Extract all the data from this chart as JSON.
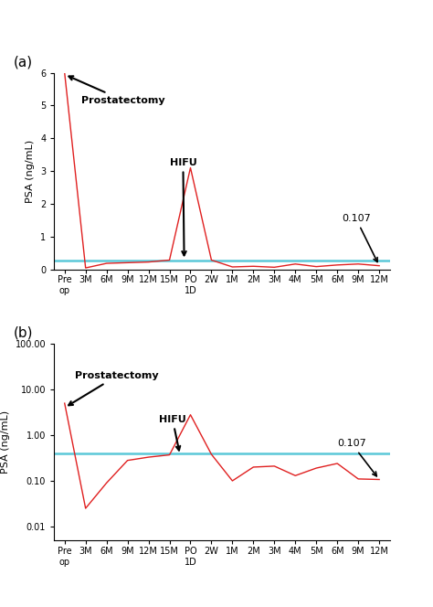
{
  "x_labels": [
    "Pre\nop",
    "3M",
    "6M",
    "9M",
    "12M",
    "15M",
    "PO\n1D",
    "2W",
    "1M",
    "2M",
    "3M",
    "4M",
    "5M",
    "6M",
    "9M",
    "12M"
  ],
  "x_positions": [
    0,
    1,
    2,
    3,
    4,
    5,
    6,
    7,
    8,
    9,
    10,
    11,
    12,
    13,
    14,
    15
  ],
  "red_values_a": [
    6.0,
    0.04,
    0.18,
    0.2,
    0.22,
    0.28,
    3.1,
    0.28,
    0.07,
    0.09,
    0.06,
    0.16,
    0.08,
    0.13,
    0.16,
    0.107
  ],
  "blue_value_a": 0.27,
  "red_values_b": [
    5.0,
    0.025,
    0.09,
    0.28,
    0.33,
    0.37,
    2.8,
    0.38,
    0.1,
    0.2,
    0.21,
    0.13,
    0.19,
    0.24,
    0.11,
    0.107
  ],
  "blue_value_b": 0.4,
  "red_color": "#e02020",
  "blue_color": "#5bc8d8",
  "panel_a_label": "(a)",
  "panel_b_label": "(b)",
  "ylabel": "PSA (ng/mL)",
  "ylim_a": [
    0,
    6
  ],
  "yticks_a": [
    0,
    1,
    2,
    3,
    4,
    5,
    6
  ],
  "ylim_b_log": [
    0.005,
    100.0
  ],
  "yticks_b_log": [
    0.01,
    0.1,
    1.0,
    10.0,
    100.0
  ]
}
